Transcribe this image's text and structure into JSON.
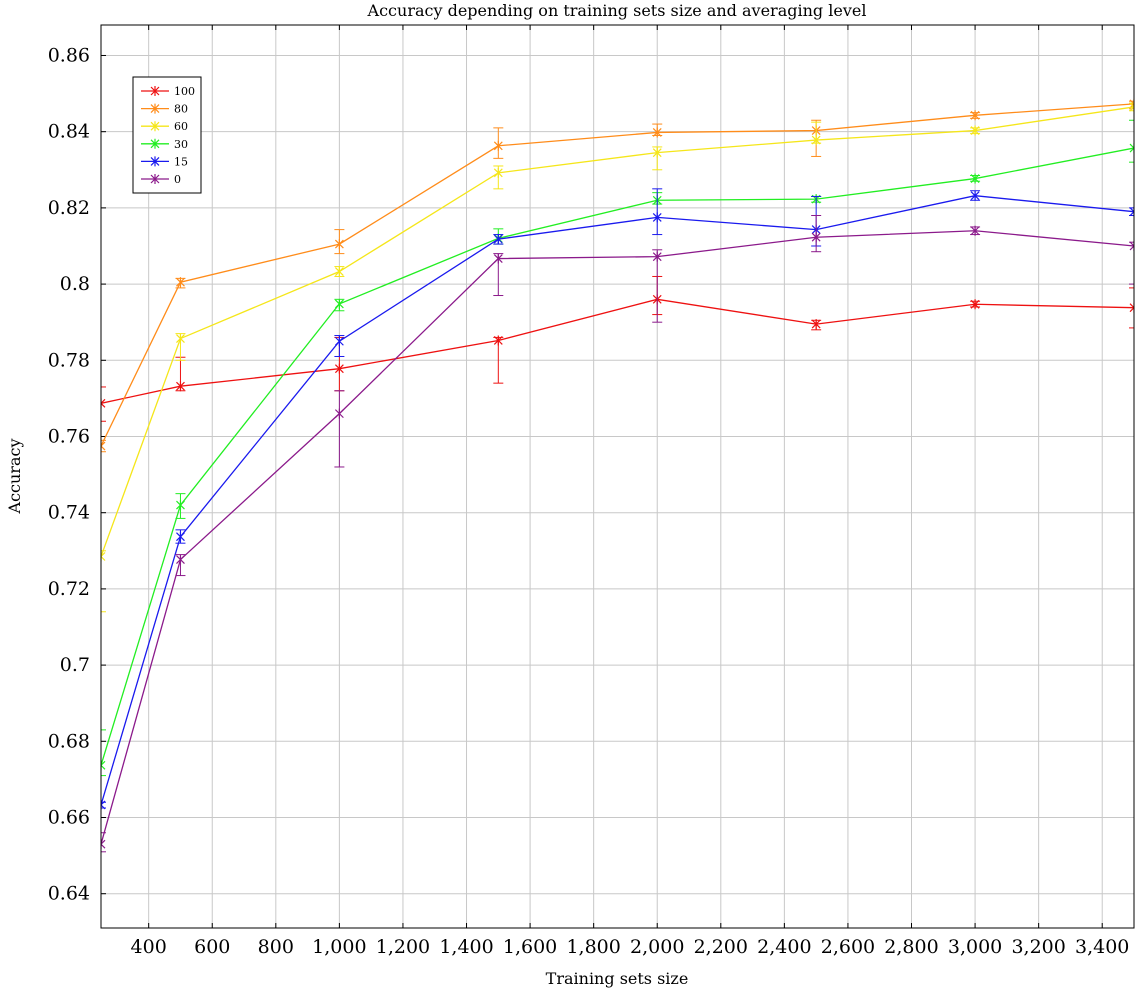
{
  "chart_data": {
    "type": "line",
    "title": "Accuracy depending on training sets size and averaging level",
    "xlabel": "Training sets size",
    "ylabel": "Accuracy",
    "xlim": [
      250,
      3500
    ],
    "ylim": [
      0.631,
      0.868
    ],
    "x_ticks": [
      400,
      600,
      800,
      1000,
      1200,
      1400,
      1600,
      1800,
      2000,
      2200,
      2400,
      2600,
      2800,
      3000,
      3200,
      3400
    ],
    "x_tick_labels": [
      "400",
      "600",
      "800",
      "1,000",
      "1,200",
      "1,400",
      "1,600",
      "1,800",
      "2,000",
      "2,200",
      "2,400",
      "2,600",
      "2,800",
      "3,000",
      "3,200",
      "3,400"
    ],
    "y_ticks": [
      0.64,
      0.66,
      0.68,
      0.7,
      0.72,
      0.74,
      0.76,
      0.78,
      0.8,
      0.82,
      0.84,
      0.86
    ],
    "y_tick_labels": [
      "0.64",
      "0.66",
      "0.68",
      "0.7",
      "0.72",
      "0.74",
      "0.76",
      "0.78",
      "0.8",
      "0.82",
      "0.84",
      "0.86"
    ],
    "grid": true,
    "legend_position": "top-left",
    "x": [
      250,
      500,
      1000,
      1500,
      2000,
      2500,
      3000,
      3500
    ],
    "series": [
      {
        "name": "100",
        "color": "#ee1111",
        "values": [
          0.7687,
          0.7732,
          0.7778,
          0.7852,
          0.796,
          0.7895,
          0.7947,
          0.7938
        ],
        "err_low": [
          0.764,
          0.772,
          0.772,
          0.774,
          0.792,
          0.788,
          0.794,
          0.7885
        ],
        "err_high": [
          0.773,
          0.7808,
          0.786,
          0.786,
          0.802,
          0.7905,
          0.7955,
          0.799
        ]
      },
      {
        "name": "80",
        "color": "#ff8c1a",
        "values": [
          0.7575,
          0.8005,
          0.8105,
          0.8363,
          0.8398,
          0.8403,
          0.8443,
          0.8473
        ],
        "err_low": [
          0.756,
          0.799,
          0.808,
          0.833,
          0.839,
          0.8335,
          0.8435,
          0.846
        ],
        "err_high": [
          0.759,
          0.8015,
          0.8143,
          0.841,
          0.842,
          0.843,
          0.845,
          0.848
        ]
      },
      {
        "name": "60",
        "color": "#f5e61a",
        "values": [
          0.7285,
          0.7857,
          0.8033,
          0.8292,
          0.8345,
          0.8378,
          0.8403,
          0.8465
        ],
        "err_low": [
          0.714,
          0.78,
          0.802,
          0.825,
          0.83,
          0.837,
          0.8395,
          0.8455
        ],
        "err_high": [
          0.73,
          0.787,
          0.8046,
          0.831,
          0.836,
          0.8425,
          0.841,
          0.8475
        ]
      },
      {
        "name": "30",
        "color": "#22ee22",
        "values": [
          0.6737,
          0.742,
          0.7948,
          0.812,
          0.822,
          0.8223,
          0.8277,
          0.8357
        ],
        "err_low": [
          0.671,
          0.7385,
          0.793,
          0.8105,
          0.821,
          0.8215,
          0.827,
          0.832
        ],
        "err_high": [
          0.683,
          0.745,
          0.796,
          0.8145,
          0.824,
          0.823,
          0.8285,
          0.843
        ]
      },
      {
        "name": "15",
        "color": "#1a1aee",
        "values": [
          0.6633,
          0.7337,
          0.785,
          0.8118,
          0.8175,
          0.8143,
          0.8232,
          0.819
        ],
        "err_low": [
          0.6625,
          0.732,
          0.781,
          0.8105,
          0.813,
          0.81,
          0.822,
          0.818
        ],
        "err_high": [
          0.664,
          0.7355,
          0.7865,
          0.813,
          0.825,
          0.823,
          0.8245,
          0.82
        ]
      },
      {
        "name": "0",
        "color": "#8b1a8b",
        "values": [
          0.653,
          0.7277,
          0.766,
          0.8067,
          0.8072,
          0.8123,
          0.814,
          0.81
        ],
        "err_low": [
          0.651,
          0.7235,
          0.752,
          0.797,
          0.79,
          0.8085,
          0.813,
          0.8
        ],
        "err_high": [
          0.656,
          0.729,
          0.772,
          0.808,
          0.809,
          0.818,
          0.815,
          0.811
        ]
      }
    ]
  }
}
